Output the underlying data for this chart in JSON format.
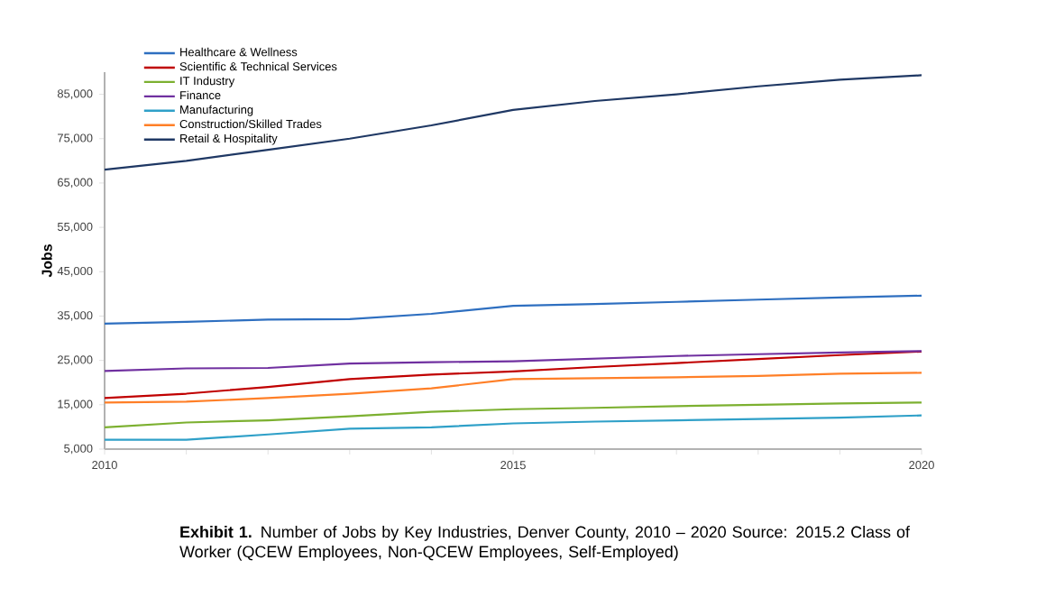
{
  "chart_data": {
    "type": "line",
    "ylabel": "Jobs",
    "annotations": [
      "**Exhibit 1.** Number of Jobs by Key Industries, Denver County, 2010 – 2020 Source: 2015.2 Class of Worker (QCEW Employees, Non-QCEW Employees, Self-Employed)"
    ],
    "x": [
      2010,
      2011,
      2012,
      2013,
      2014,
      2015,
      2016,
      2017,
      2018,
      2019,
      2020
    ],
    "series": [
      {
        "name": "Healthcare & Wellness",
        "color": "#2e6fc0",
        "values": [
          33300,
          33700,
          34200,
          34300,
          35500,
          37300,
          37700,
          38200,
          38700,
          39200,
          39600
        ]
      },
      {
        "name": "Scientific & Technical Services",
        "color": "#c00000",
        "values": [
          16500,
          17500,
          19000,
          20800,
          21800,
          22500,
          23500,
          24400,
          25300,
          26200,
          27000
        ]
      },
      {
        "name": "IT Industry",
        "color": "#7cb030",
        "values": [
          9900,
          11000,
          11500,
          12400,
          13400,
          14000,
          14300,
          14700,
          15000,
          15300,
          15500
        ]
      },
      {
        "name": "Finance",
        "color": "#7030a0",
        "values": [
          22600,
          23200,
          23300,
          24300,
          24600,
          24800,
          25400,
          26000,
          26400,
          26800,
          27100
        ]
      },
      {
        "name": "Manufacturing",
        "color": "#2fa0c8",
        "values": [
          7100,
          7100,
          8300,
          9600,
          9900,
          10800,
          11200,
          11500,
          11800,
          12100,
          12600
        ]
      },
      {
        "name": "Construction/Skilled Trades",
        "color": "#ff7f27",
        "values": [
          15500,
          15700,
          16500,
          17500,
          18700,
          20800,
          21000,
          21200,
          21500,
          22000,
          22200
        ]
      },
      {
        "name": "Retail & Hospitality",
        "color": "#1f3864",
        "values": [
          68000,
          70000,
          72500,
          75000,
          78000,
          81500,
          83500,
          85000,
          86800,
          88300,
          89300
        ]
      }
    ],
    "xlim": [
      2010,
      2020
    ],
    "xticks": [
      2010,
      {
        "value": 2011,
        "label": null
      },
      {
        "value": 2012,
        "label": null
      },
      {
        "value": 2013,
        "label": null
      },
      {
        "value": 2014,
        "label": null
      },
      2015,
      {
        "value": 2016,
        "label": null
      },
      {
        "value": 2017,
        "label": null
      },
      {
        "value": 2018,
        "label": null
      },
      {
        "value": 2019,
        "label": null
      },
      2020
    ],
    "ylim": [
      5000,
      90000
    ],
    "yticks": [
      {
        "value": 5000,
        "label": "5,000"
      },
      {
        "value": 15000,
        "label": "15,000"
      },
      {
        "value": 25000,
        "label": "25,000"
      },
      {
        "value": 35000,
        "label": "35,000"
      },
      {
        "value": 45000,
        "label": "45,000"
      },
      {
        "value": 55000,
        "label": "55,000"
      },
      {
        "value": 65000,
        "label": "65,000"
      },
      {
        "value": 75000,
        "label": "75,000"
      },
      {
        "value": 85000,
        "label": "85,000"
      }
    ],
    "legend": "top left",
    "grid": false,
    "marker": "none",
    "line_style": "solid"
  }
}
